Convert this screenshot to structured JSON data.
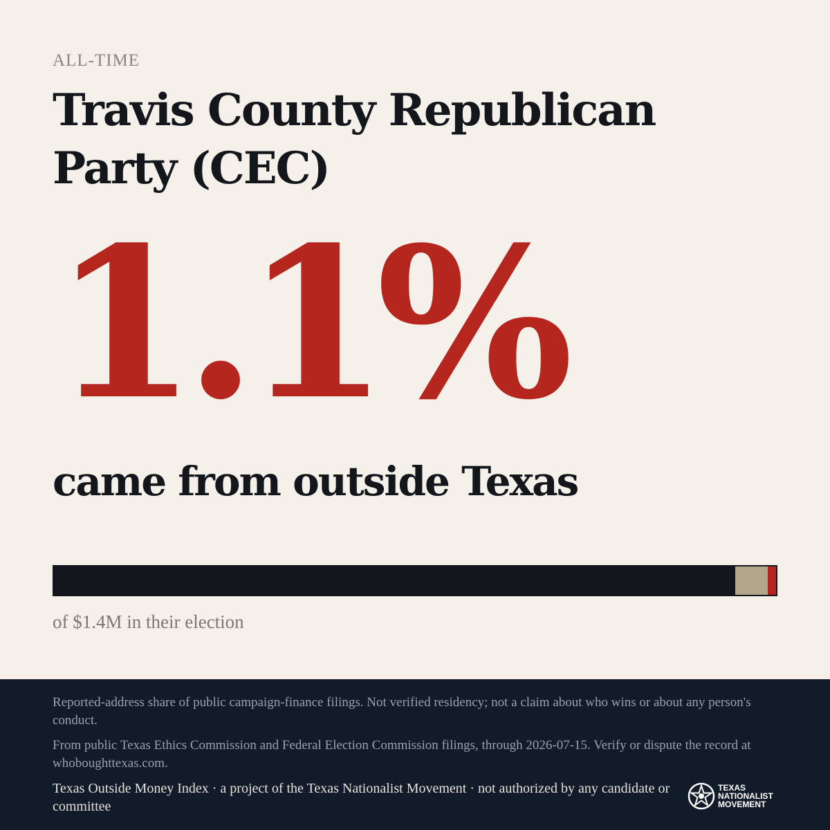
{
  "header": {
    "kicker": "ALL-TIME",
    "title": "Travis County Republican Party (CEC)"
  },
  "headline": {
    "percent": "1.1%",
    "caption": "came from outside Texas"
  },
  "bar": {
    "segments": [
      {
        "key": "texas",
        "share": 0.941,
        "color": "#13161b"
      },
      {
        "key": "unknown",
        "share": 0.045,
        "color": "#b2a68d"
      },
      {
        "key": "outside",
        "share": 0.011,
        "color": "#b5261e"
      }
    ],
    "caption": "of $1.4M in their election"
  },
  "footer": {
    "note1": "Reported-address share of public campaign-finance filings. Not verified residency; not a claim about who wins or about any person's conduct.",
    "note2": "From public Texas Ethics Commission and Federal Election Commission filings, through 2026-07-15. Verify or dispute the record at whoboughttexas.com.",
    "note3": "Texas Outside Money Index · a project of the Texas Nationalist Movement · not authorized by any candidate or committee",
    "logo": {
      "icon": "star-seal-icon",
      "line1": "TEXAS",
      "line2": "NATIONALIST",
      "line3": "MOVEMENT"
    }
  },
  "colors": {
    "background": "#f5f1ea",
    "accent_red": "#b5261e",
    "ink": "#13161b",
    "footer_bg": "#111b2a"
  }
}
